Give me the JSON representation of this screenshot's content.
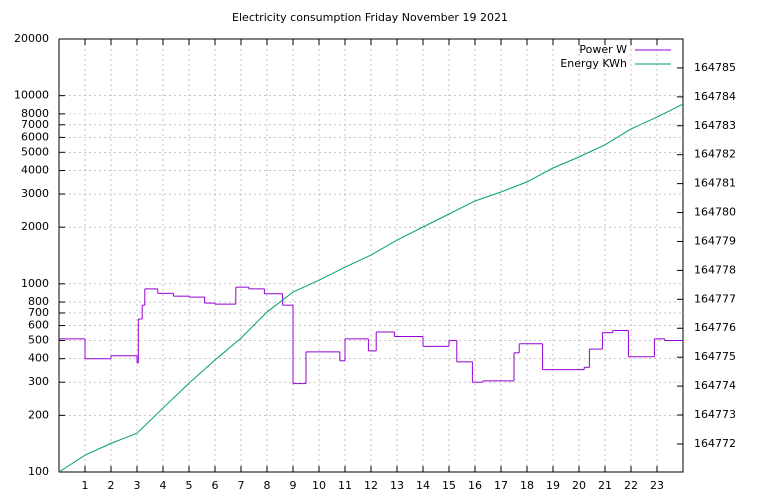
{
  "chart_data": {
    "type": "line",
    "title": "Electricity consumption Friday November 19 2021",
    "xlim": [
      0,
      24
    ],
    "xticks": [
      1,
      2,
      3,
      4,
      5,
      6,
      7,
      8,
      9,
      10,
      11,
      12,
      13,
      14,
      15,
      16,
      17,
      18,
      19,
      20,
      21,
      22,
      23
    ],
    "ylim": [
      100,
      20000
    ],
    "ylog": true,
    "yticks": [
      100,
      200,
      300,
      400,
      500,
      600,
      700,
      800,
      1000,
      2000,
      3000,
      4000,
      5000,
      6000,
      7000,
      8000,
      10000,
      20000
    ],
    "y2lim": [
      164771.03,
      164786.0
    ],
    "y2ticks": [
      164772,
      164773,
      164774,
      164775,
      164776,
      164777,
      164778,
      164779,
      164780,
      164781,
      164782,
      164783,
      164784,
      164785
    ],
    "grid": true,
    "legend": "top-right",
    "series": [
      {
        "name": "Power W",
        "color": "#9400d3",
        "step": true,
        "x": [
          0,
          1,
          2,
          3,
          3.05,
          3.2,
          3.3,
          3.8,
          4.4,
          5,
          5.6,
          6,
          6.8,
          7.3,
          7.9,
          8.6,
          9,
          9.5,
          10.8,
          11,
          11.9,
          12.2,
          12.9,
          14,
          15,
          15.3,
          15.9,
          16.3,
          17.5,
          17.7,
          18.6,
          20.2,
          20.4,
          20.9,
          21.3,
          21.9,
          22.9,
          23.3,
          24
        ],
        "values": [
          510,
          400,
          415,
          380,
          650,
          770,
          940,
          890,
          860,
          850,
          790,
          780,
          960,
          940,
          885,
          770,
          295,
          435,
          390,
          510,
          440,
          555,
          525,
          465,
          500,
          385,
          300,
          305,
          430,
          480,
          350,
          360,
          450,
          550,
          565,
          410,
          510,
          500,
          500
        ]
      },
      {
        "name": "Energy KWh",
        "color": "#009e73",
        "axis": "y2",
        "x": [
          0,
          1,
          2,
          3,
          4,
          5,
          6,
          7,
          8,
          9,
          10,
          11,
          12,
          13,
          14,
          15,
          16,
          17,
          18,
          19,
          20,
          21,
          22,
          23,
          24
        ],
        "values": [
          164771.03,
          164771.61,
          164772.02,
          164772.37,
          164773.24,
          164774.1,
          164774.9,
          164775.66,
          164776.56,
          164777.25,
          164777.66,
          164778.11,
          164778.53,
          164779.05,
          164779.5,
          164779.95,
          164780.4,
          164780.71,
          164781.06,
          164781.54,
          164781.92,
          164782.34,
          164782.89,
          164783.3,
          164783.75
        ]
      }
    ]
  }
}
